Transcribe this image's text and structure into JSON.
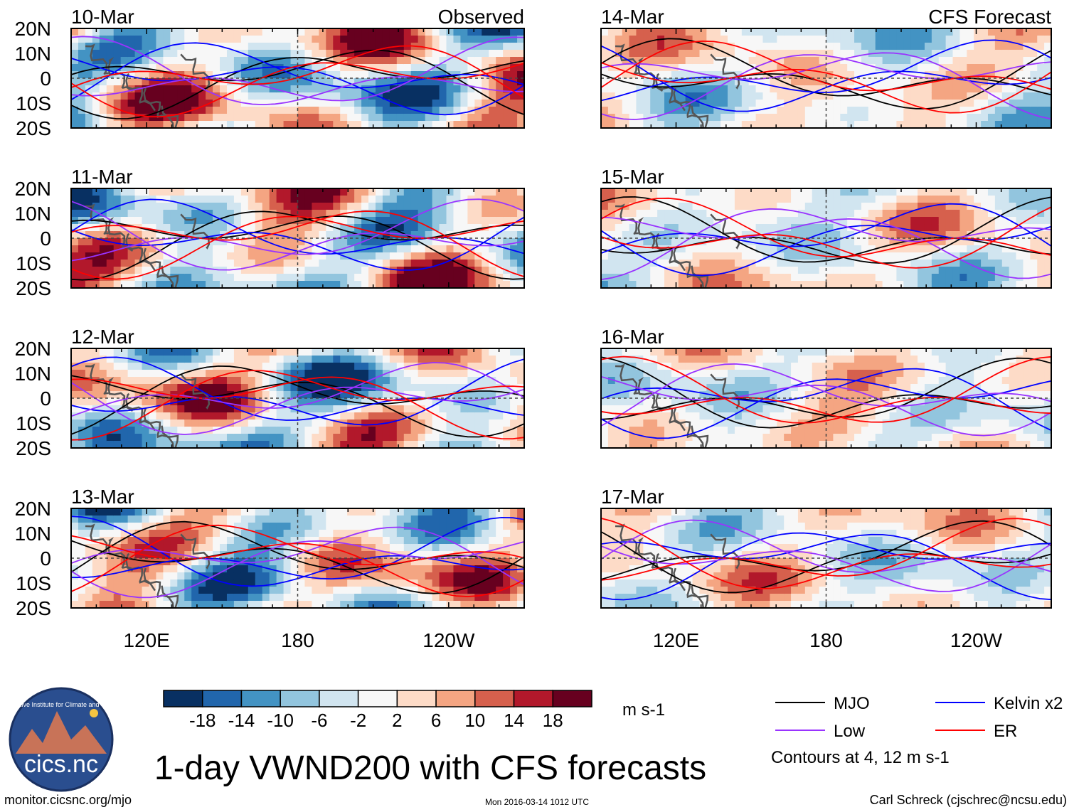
{
  "chart_data": {
    "type": "heatmap",
    "title": "1-day VWND200 with CFS forecasts",
    "observed_label": "Observed",
    "forecast_label": "CFS Forecast",
    "xticks": [
      "120E",
      "180",
      "120W"
    ],
    "xtick_values_deg": [
      120,
      180,
      240
    ],
    "xlim_deg": [
      90,
      270
    ],
    "yticks": [
      "20N",
      "10N",
      "0",
      "10S",
      "20S"
    ],
    "ytick_values_deg": [
      20,
      10,
      0,
      -10,
      -20
    ],
    "ylim_deg": [
      -20,
      20
    ],
    "observed_dates": [
      "10-Mar",
      "11-Mar",
      "12-Mar",
      "13-Mar"
    ],
    "forecast_dates": [
      "14-Mar",
      "15-Mar",
      "16-Mar",
      "17-Mar"
    ],
    "colorbar": {
      "unit": "m s-1",
      "tick_labels": [
        "-18",
        "-14",
        "-10",
        "-6",
        "-2",
        "2",
        "6",
        "10",
        "14",
        "18"
      ],
      "colors": [
        "#083062",
        "#2166ac",
        "#4393c3",
        "#92c5de",
        "#d1e5f0",
        "#f7f7f7",
        "#fddbc7",
        "#f4a582",
        "#d6604d",
        "#b2182b",
        "#67001f"
      ]
    },
    "legend": [
      {
        "label": "MJO",
        "color": "#000000"
      },
      {
        "label": "Kelvin x2",
        "color": "#0000ff"
      },
      {
        "label": "Low",
        "color": "#9933ff"
      },
      {
        "label": "ER",
        "color": "#ff0000"
      }
    ],
    "contour_note": "Contours at 4, 12 m s-1"
  },
  "logo_text": "cics.nc",
  "logo_ring_text": "Cooperative Institute for Climate and Satellites",
  "footer": {
    "url": "monitor.cicsnc.org/mjo",
    "timestamp": "Mon 2016-03-14 1012 UTC",
    "credit": "Carl Schreck (cjschrec@ncsu.edu)"
  }
}
